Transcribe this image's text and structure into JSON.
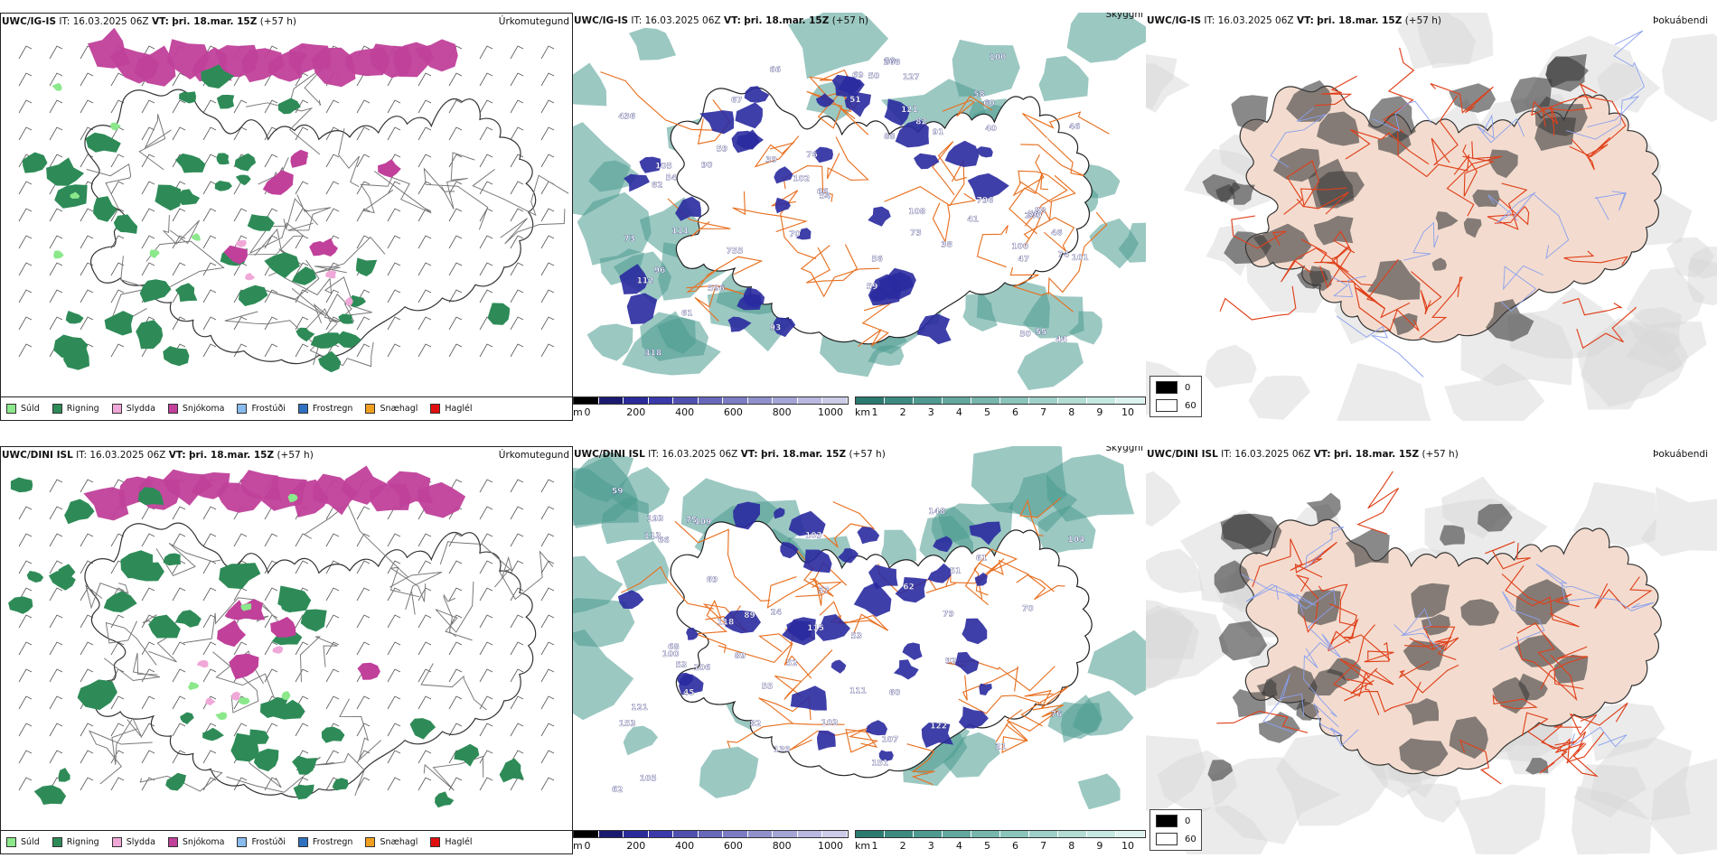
{
  "rows": [
    {
      "precip": {
        "model": "UWC/IG-IS",
        "it": "IT: 16.03.2025 06Z",
        "vt_label": "VT:",
        "vt": "þri. 18.mar. 15Z",
        "lead": "(+57 h)",
        "right": "Úrkomutegund"
      },
      "cloud": {
        "model": "UWC/IG-IS",
        "it": "IT: 16.03.2025 06Z",
        "vt_label": "VT:",
        "vt": "þri. 18.mar. 15Z",
        "lead": "(+57 h)",
        "right": "Skyggni"
      },
      "fog": {
        "model": "UWC/IG-IS",
        "it": "IT: 16.03.2025 06Z",
        "vt_label": "VT:",
        "vt": "þri. 18.mar. 15Z",
        "lead": "(+57 h)",
        "right": "Þokuábendi"
      },
      "labels": [
        "755",
        "436",
        "280",
        "96",
        "40",
        "55",
        "41",
        "38",
        "56",
        "46",
        "44",
        "111",
        "47",
        "51",
        "58",
        "70",
        "80",
        "50",
        "596",
        "60",
        "59",
        "54",
        "82",
        "67",
        "61",
        "91",
        "112",
        "121",
        "105",
        "101",
        "796",
        "100",
        "69",
        "46",
        "39",
        "66",
        "318",
        "102",
        "88",
        "93",
        "127",
        "73",
        "74",
        "90",
        "108",
        "88",
        "82",
        "66",
        "73",
        "59",
        "50",
        "100",
        "268",
        "54",
        "76",
        "56"
      ]
    },
    {
      "precip": {
        "model": "UWC/DINI ISL",
        "it": "IT: 16.03.2025 06Z",
        "vt_label": "VT:",
        "vt": "þri. 18.mar. 15Z",
        "lead": "(+57 h)",
        "right": "Úrkomutegund"
      },
      "cloud": {
        "model": "UWC/DINI ISL",
        "it": "IT: 16.03.2025 06Z",
        "vt_label": "VT:",
        "vt": "þri. 18.mar. 15Z",
        "lead": "(+57 h)",
        "right": "Skyggni"
      },
      "fog": {
        "model": "UWC/DINI ISL",
        "it": "IT: 16.03.2025 06Z",
        "vt_label": "VT:",
        "vt": "þri. 18.mar. 15Z",
        "lead": "(+57 h)",
        "right": "Þokuábendi"
      },
      "labels": [
        "151",
        "60",
        "53",
        "52",
        "51",
        "70",
        "79",
        "76",
        "139",
        "107",
        "69",
        "89",
        "75",
        "104",
        "106",
        "121",
        "100",
        "62",
        "24",
        "111",
        "55",
        "105",
        "59",
        "62",
        "109",
        "92",
        "103",
        "153",
        "148",
        "82",
        "103",
        "68",
        "61",
        "66",
        "115",
        "113",
        "122",
        "193",
        "89",
        "53",
        "45",
        "118",
        "57",
        "21"
      ]
    }
  ],
  "precip_legend": [
    {
      "label": "Súld",
      "color": "#8be88b"
    },
    {
      "label": "Rigning",
      "color": "#2e8b57"
    },
    {
      "label": "Slydda",
      "color": "#f0a8d8"
    },
    {
      "label": "Snjókoma",
      "color": "#c0409a"
    },
    {
      "label": "Frostúði",
      "color": "#88bbee"
    },
    {
      "label": "Frostregn",
      "color": "#3070c0"
    },
    {
      "label": "Snæhagl",
      "color": "#f0a020"
    },
    {
      "label": "Haglél",
      "color": "#e01010"
    }
  ],
  "ceiling_bar": {
    "unit": "m",
    "ticks": [
      "0",
      "200",
      "400",
      "600",
      "800",
      "1000"
    ],
    "colors": [
      "#000000",
      "#1a1a70",
      "#2a2a9a",
      "#3a3aaa",
      "#5050b0",
      "#6868bb",
      "#7c7cc4",
      "#9090cc",
      "#a4a4d6",
      "#b8b8e0",
      "#cccce8"
    ]
  },
  "visibility_bar": {
    "unit": "km",
    "ticks": [
      "1",
      "2",
      "3",
      "4",
      "5",
      "6",
      "7",
      "8",
      "9",
      "10"
    ],
    "colors": [
      "#2a7a70",
      "#3c8a80",
      "#4e9a90",
      "#62a89e",
      "#76b6ac",
      "#8ac4ba",
      "#9ed0c8",
      "#b2dcd4",
      "#c6e8e2",
      "#dcf2ee"
    ]
  },
  "fog_legend": [
    {
      "label": "0",
      "color": "#000000"
    },
    {
      "label": "60",
      "color": "#ffffff"
    }
  ],
  "colors": {
    "rain": "#2e8b57",
    "snow": "#c0409a",
    "ceiling_blue": "#2a2aa0",
    "visibility_teal": "#4a9a90",
    "roads": "#e87020",
    "fog_land": "#f3dccf",
    "fog_dark": "#3a3a3a",
    "fog_roads": "#e0401a"
  }
}
